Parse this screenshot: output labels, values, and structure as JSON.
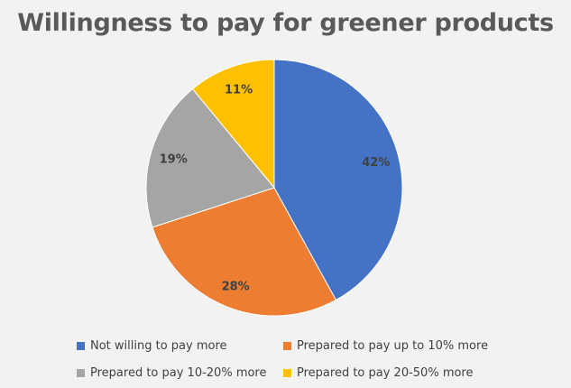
{
  "chart_data": {
    "type": "pie",
    "title": "Willingness to pay for greener products",
    "categories": [
      "Not willing to pay more",
      "Prepared to pay up to 10% more",
      "Prepared to pay 10-20% more",
      "Prepared to pay 20-50% more"
    ],
    "values": [
      42,
      28,
      19,
      11
    ],
    "labels": [
      "42%",
      "28%",
      "19%",
      "11%"
    ],
    "colors": [
      "#4472c4",
      "#ed7d31",
      "#a5a5a5",
      "#ffc000"
    ],
    "legend_position": "bottom"
  }
}
